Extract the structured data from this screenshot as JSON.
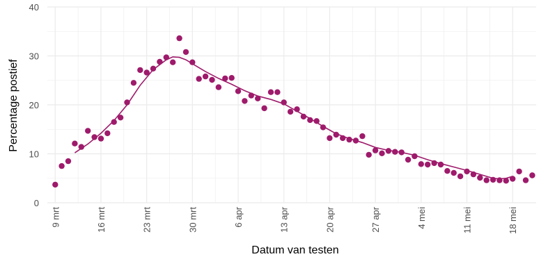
{
  "chart_data": {
    "type": "scatter",
    "title": "",
    "xlabel": "Datum van testen",
    "ylabel": "Percentage postief",
    "ylim": [
      0,
      40
    ],
    "yticks": [
      0,
      10,
      20,
      30,
      40
    ],
    "x_start_date": "2020-03-09",
    "xlim_days": [
      -1.2,
      73.6
    ],
    "xticks": [
      {
        "day": 0,
        "label": "9 mrt"
      },
      {
        "day": 7,
        "label": "16 mrt"
      },
      {
        "day": 14,
        "label": "23 mrt"
      },
      {
        "day": 21,
        "label": "30 mrt"
      },
      {
        "day": 28,
        "label": "6 apr"
      },
      {
        "day": 35,
        "label": "13 apr"
      },
      {
        "day": 42,
        "label": "20 apr"
      },
      {
        "day": 49,
        "label": "27 apr"
      },
      {
        "day": 56,
        "label": "4 mei"
      },
      {
        "day": 63,
        "label": "11 mei"
      },
      {
        "day": 70,
        "label": "18 mei"
      }
    ],
    "grid": true,
    "colors": {
      "series": "#9e1a6b",
      "grid": "#ebebeb",
      "tick_text": "#4d4d4d"
    },
    "series": [
      {
        "kind": "points",
        "x": [
          0,
          1,
          2,
          3,
          4,
          5,
          6,
          7,
          8,
          9,
          10,
          11,
          12,
          13,
          14,
          15,
          16,
          17,
          18,
          19,
          20,
          21,
          22,
          23,
          24,
          25,
          26,
          27,
          28,
          29,
          30,
          31,
          32,
          33,
          34,
          35,
          36,
          37,
          38,
          39,
          40,
          41,
          42,
          43,
          44,
          45,
          46,
          47,
          48,
          49,
          50,
          51,
          52,
          53,
          54,
          55,
          56,
          57,
          58,
          59,
          60,
          61,
          62,
          63,
          64,
          65,
          66,
          67,
          68,
          69,
          70,
          71,
          72,
          73
        ],
        "y": [
          3.7,
          7.5,
          8.5,
          12.1,
          11.4,
          14.7,
          13.4,
          13.1,
          14.2,
          16.5,
          17.4,
          20.5,
          24.5,
          27.1,
          26.6,
          27.4,
          28.8,
          29.7,
          28.7,
          33.6,
          30.8,
          28.7,
          25.3,
          25.8,
          25.1,
          23.6,
          25.4,
          25.5,
          22.8,
          20.8,
          21.9,
          21.3,
          19.3,
          22.6,
          22.6,
          20.5,
          18.6,
          19.1,
          17.6,
          16.9,
          16.7,
          15.4,
          13.2,
          13.9,
          13.2,
          12.9,
          12.7,
          13.6,
          9.8,
          10.7,
          10.1,
          10.6,
          10.4,
          10.3,
          8.8,
          9.5,
          7.9,
          7.8,
          8.1,
          7.8,
          6.5,
          6.1,
          5.4,
          6.4,
          5.8,
          5.1,
          4.6,
          4.7,
          4.6,
          4.5,
          4.9,
          6.4,
          4.6,
          5.6
        ]
      },
      {
        "kind": "trend",
        "x": [
          3,
          5,
          7,
          9,
          11,
          13,
          15,
          17,
          18,
          19,
          20,
          21,
          23,
          25,
          27,
          29,
          31,
          33,
          35,
          37,
          39,
          41,
          43,
          45,
          47,
          49,
          51,
          53,
          55,
          57,
          59,
          61,
          63,
          65,
          67,
          68,
          69,
          70
        ],
        "y": [
          10.2,
          12.0,
          14.2,
          16.8,
          20.0,
          24.0,
          27.2,
          29.2,
          29.8,
          29.7,
          29.2,
          28.4,
          26.8,
          25.4,
          24.2,
          22.9,
          21.8,
          21.1,
          20.2,
          18.7,
          17.2,
          15.6,
          14.1,
          13.1,
          12.3,
          11.3,
          10.7,
          10.3,
          9.7,
          8.8,
          8.0,
          7.3,
          6.6,
          5.8,
          5.0,
          4.9,
          5.0,
          5.4
        ]
      }
    ]
  }
}
